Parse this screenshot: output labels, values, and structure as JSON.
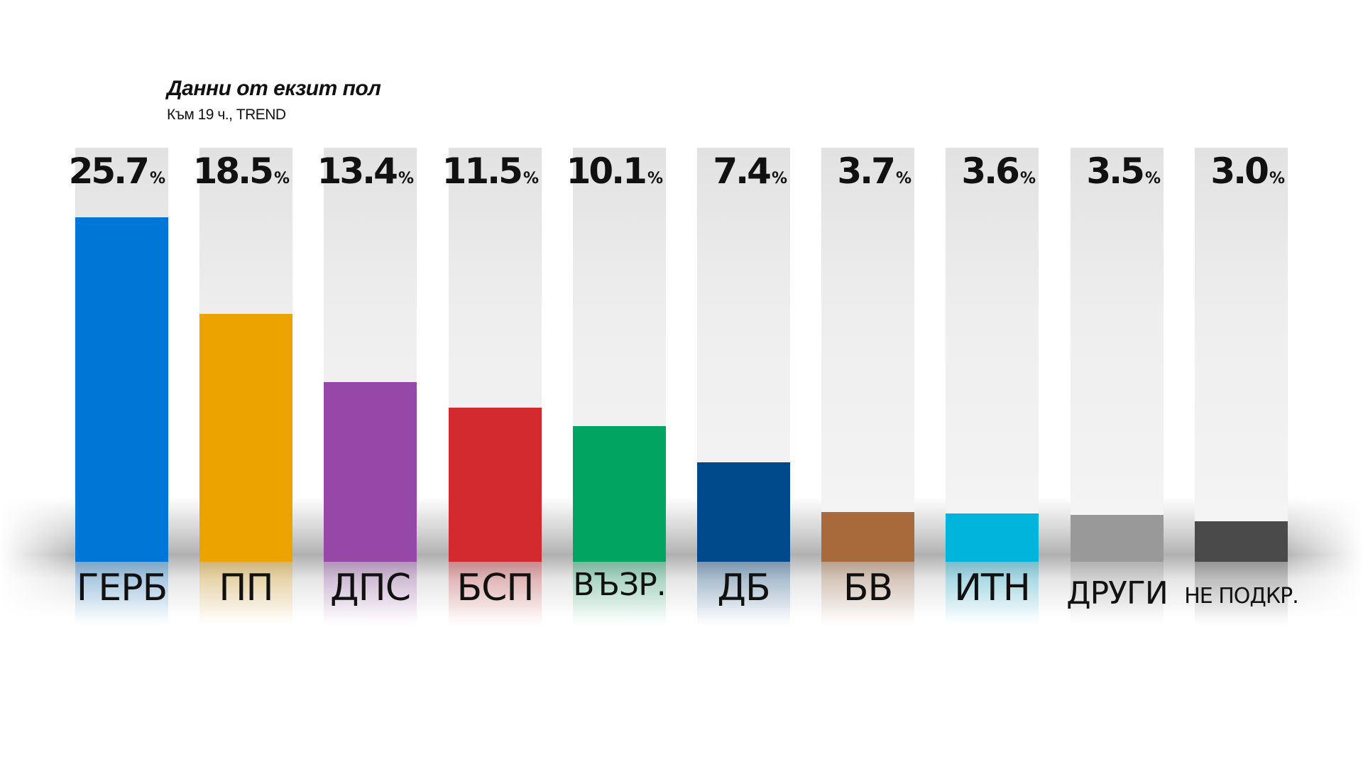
{
  "chart_data": {
    "type": "bar",
    "title": "Данни от екзит пол",
    "subtitle": "Към 19 ч., TREND",
    "unit": "%",
    "ylim": [
      0,
      30
    ],
    "categories": [
      "ГЕРБ",
      "ПП",
      "ДПС",
      "БСП",
      "ВЪЗР.",
      "ДБ",
      "БВ",
      "ИТН",
      "ДРУГИ",
      "НЕ ПОДКР."
    ],
    "values": [
      25.7,
      18.5,
      13.4,
      11.5,
      10.1,
      7.4,
      3.7,
      3.6,
      3.5,
      3.0
    ],
    "value_labels": [
      "25.7",
      "18.5",
      "13.4",
      "11.5",
      "10.1",
      "7.4",
      "3.7",
      "3.6",
      "3.5",
      "3.0"
    ],
    "colors": [
      "#0076d6",
      "#eba300",
      "#9548a8",
      "#d22a2e",
      "#00a562",
      "#004a8c",
      "#a8693b",
      "#00b4dc",
      "#999999",
      "#4a4a4a"
    ]
  }
}
